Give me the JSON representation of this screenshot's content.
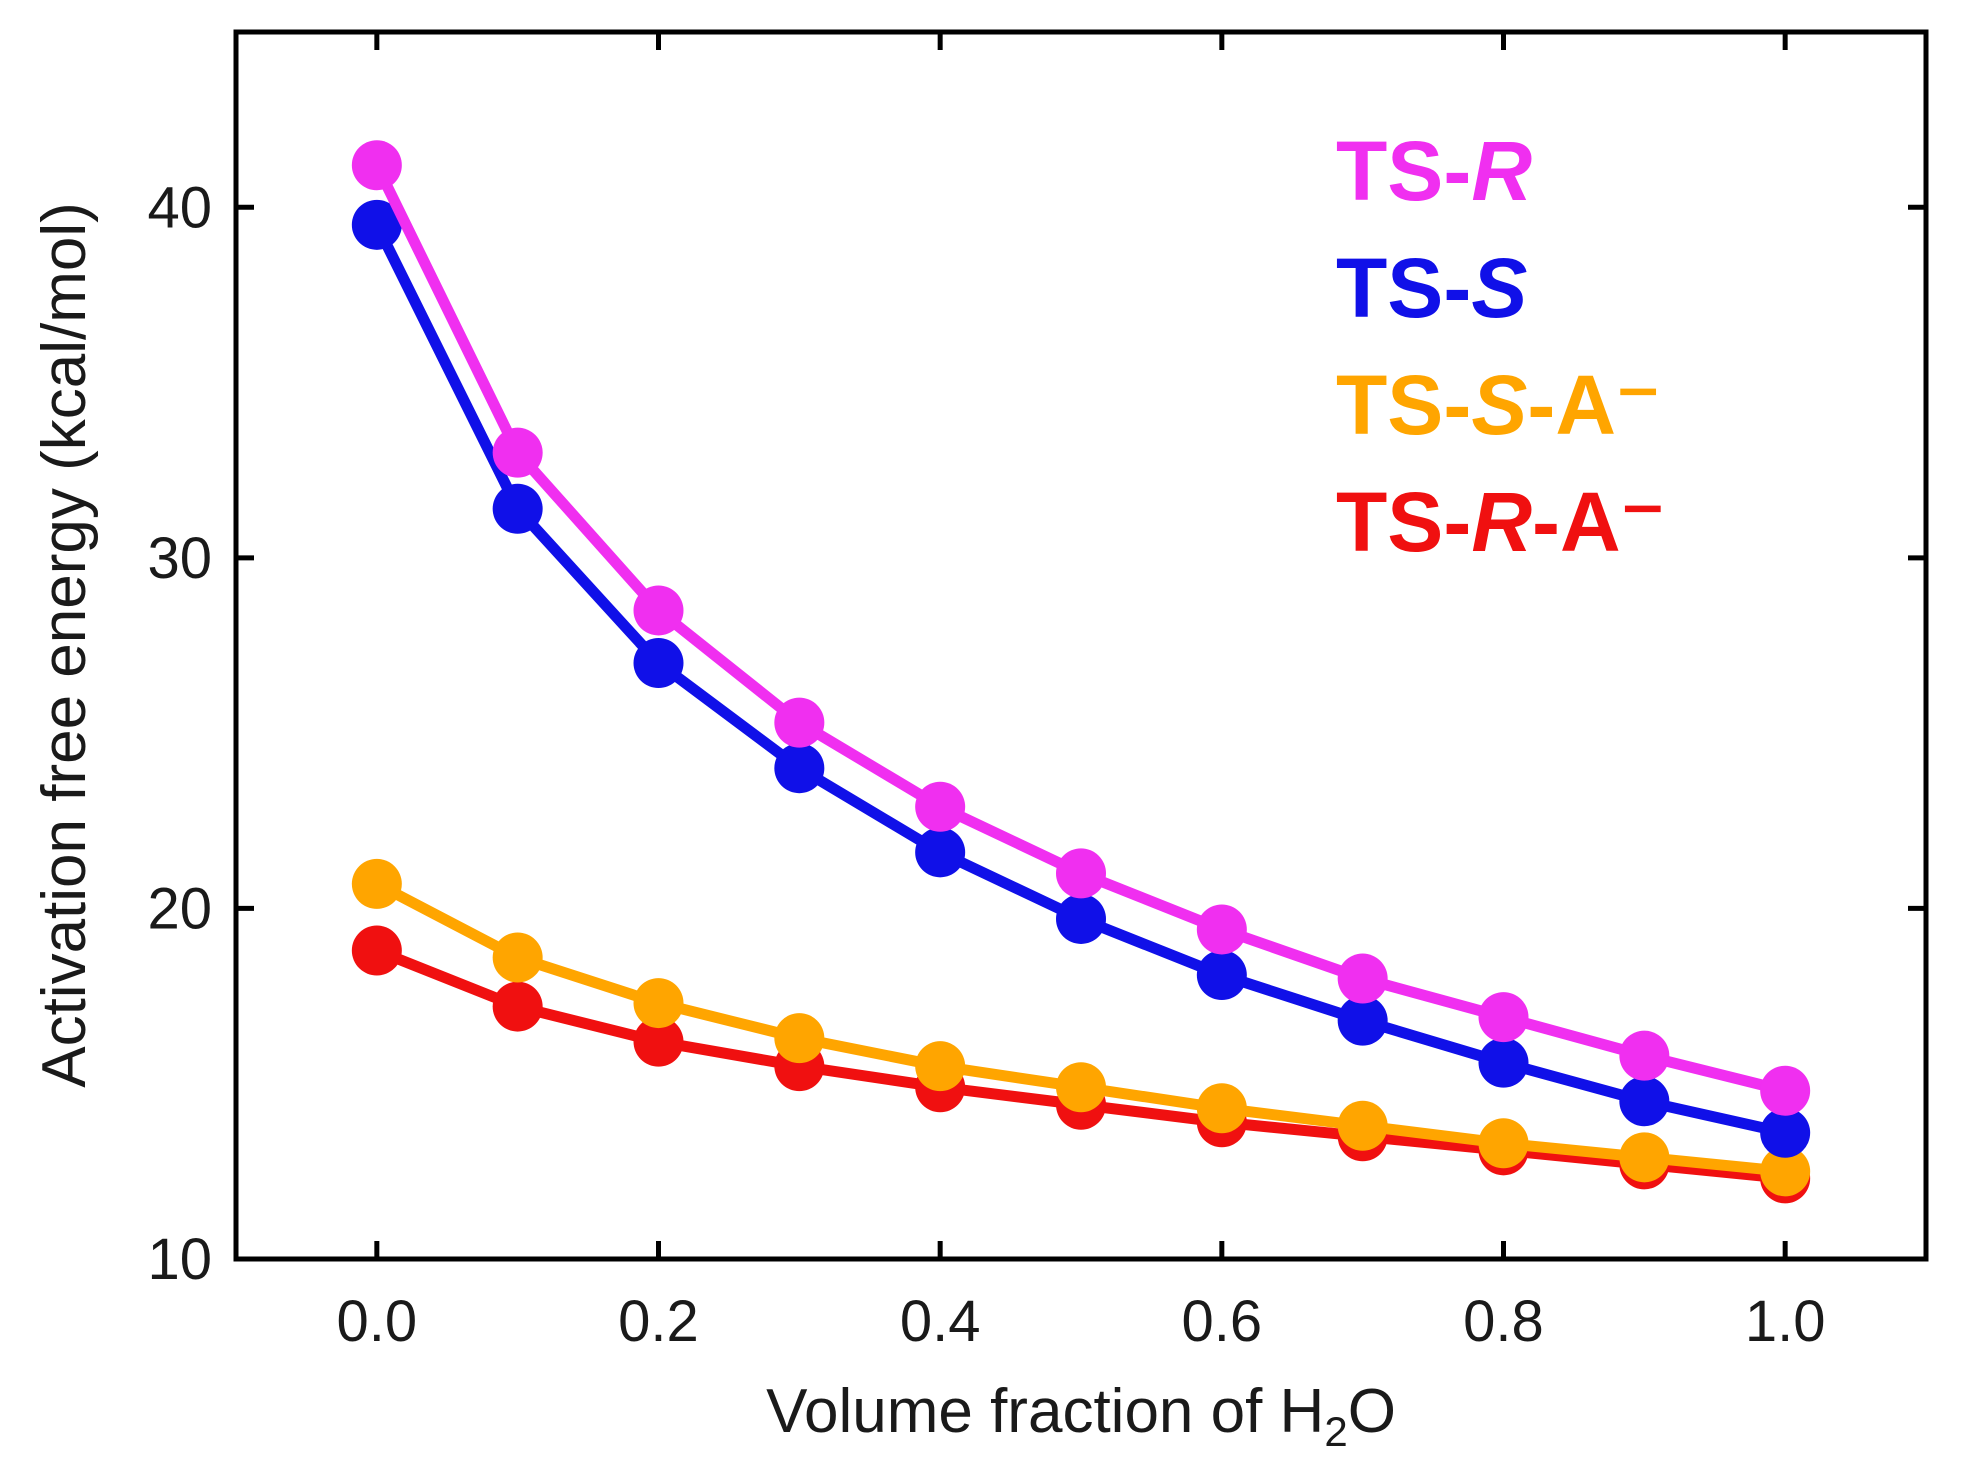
{
  "chart_data": {
    "type": "line",
    "title": "",
    "xlabel": "Volume fraction of H",
    "xlabel_subscript": "2",
    "xlabel_suffix": "O",
    "ylabel": "Activation free energy (kcal/mol)",
    "xlim": [
      -0.1,
      1.1
    ],
    "ylim": [
      10,
      45
    ],
    "xticks": [
      0.0,
      0.2,
      0.4,
      0.6,
      0.8,
      1.0
    ],
    "xtick_labels": [
      "0.0",
      "0.2",
      "0.4",
      "0.6",
      "0.8",
      "1.0"
    ],
    "yticks": [
      10,
      20,
      30,
      40
    ],
    "ytick_labels": [
      "10",
      "20",
      "30",
      "40"
    ],
    "grid": false,
    "legend_position": "top-right",
    "x": [
      0.0,
      0.1,
      0.2,
      0.3,
      0.4,
      0.5,
      0.6,
      0.7,
      0.8,
      0.9,
      1.0
    ],
    "series": [
      {
        "name": "TS-R",
        "label_prefix": "TS-",
        "label_italic": "R",
        "label_suffix": "",
        "color": "#f02ff0",
        "values": [
          41.2,
          33.0,
          28.5,
          25.3,
          22.9,
          21.0,
          19.4,
          18.0,
          16.9,
          15.8,
          14.8
        ]
      },
      {
        "name": "TS-S",
        "label_prefix": "TS-",
        "label_italic": "S",
        "label_suffix": "",
        "color": "#1010e8",
        "values": [
          39.5,
          31.4,
          27.0,
          24.0,
          21.6,
          19.7,
          18.1,
          16.8,
          15.6,
          14.5,
          13.6
        ]
      },
      {
        "name": "TS-S-A⁻",
        "label_prefix": "TS-",
        "label_italic": "S",
        "label_suffix": "-A⁻",
        "color": "#ffa500",
        "values": [
          20.7,
          18.6,
          17.3,
          16.3,
          15.5,
          14.9,
          14.3,
          13.8,
          13.3,
          12.9,
          12.5
        ]
      },
      {
        "name": "TS-R-A⁻",
        "label_prefix": "TS-",
        "label_italic": "R",
        "label_suffix": "-A⁻",
        "color": "#f01010",
        "values": [
          18.8,
          17.2,
          16.2,
          15.5,
          14.9,
          14.4,
          13.9,
          13.5,
          13.1,
          12.7,
          12.3
        ]
      }
    ]
  }
}
